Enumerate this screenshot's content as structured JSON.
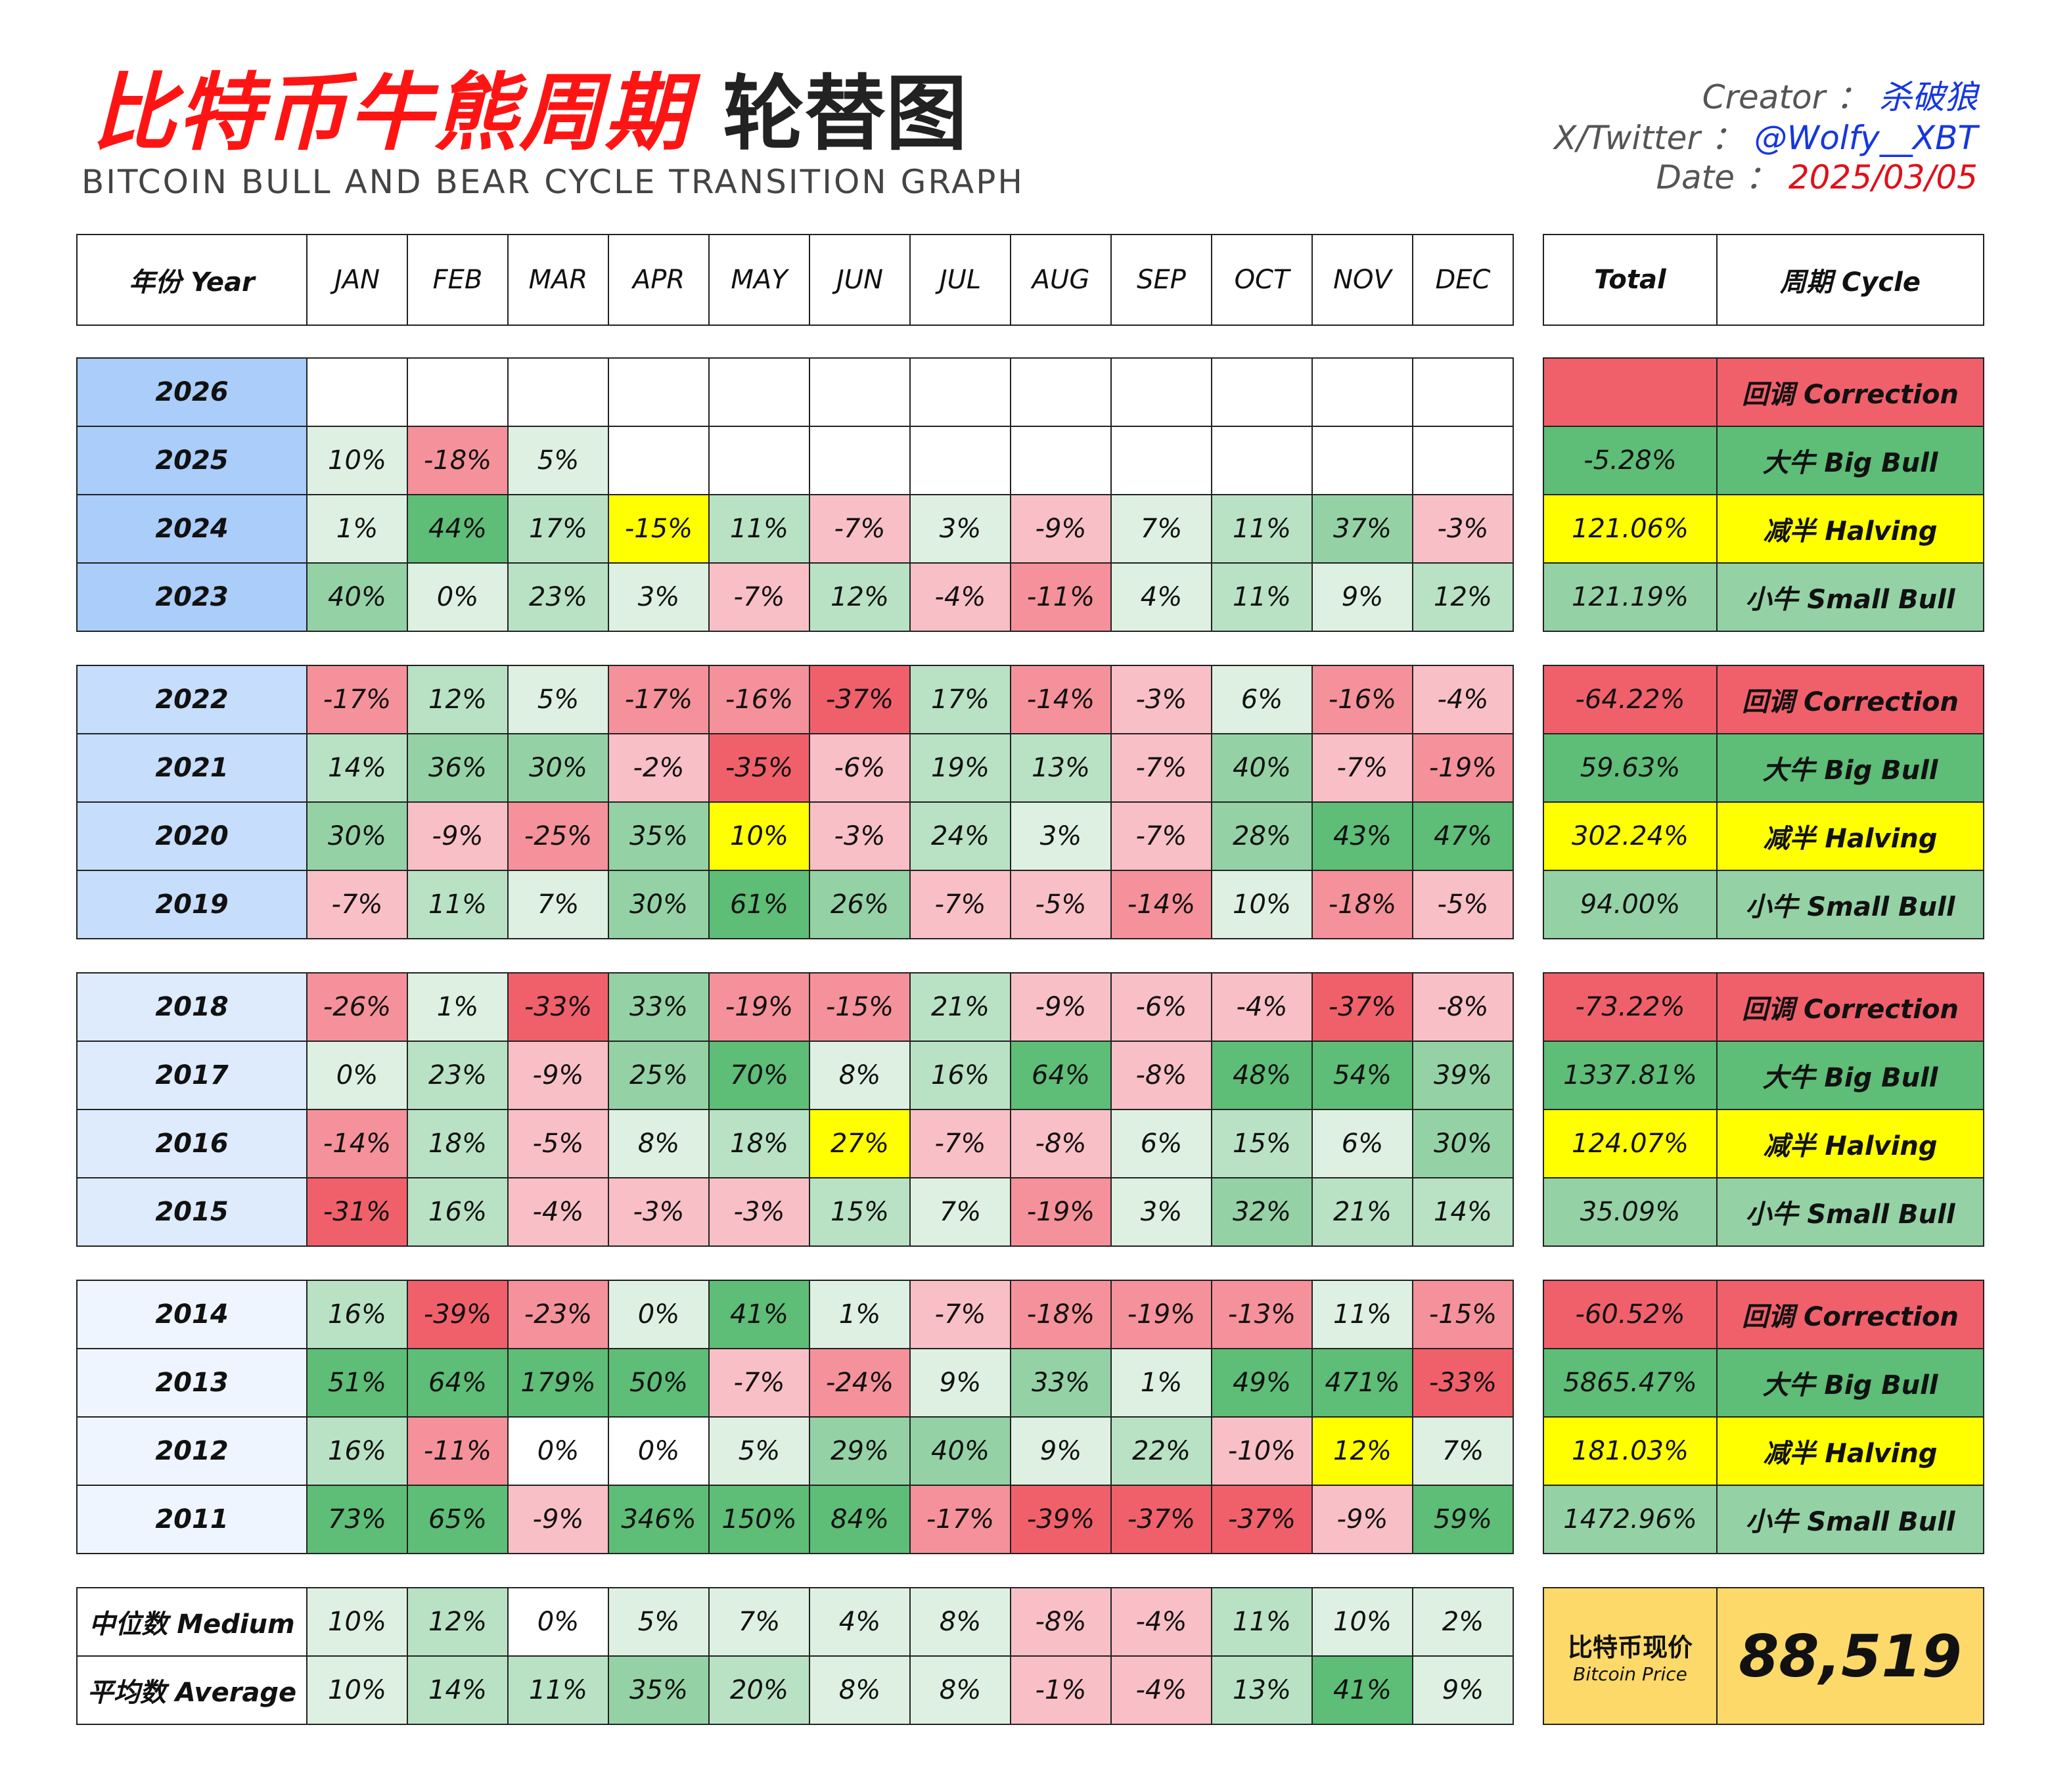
{
  "title": {
    "main": "比特币牛熊周期",
    "sub": "轮替图",
    "english": "BITCOIN BULL AND BEAR CYCLE TRANSITION GRAPH"
  },
  "meta": {
    "creator_label": "Creator ：",
    "creator": "杀破狼",
    "twitter_label": "X/Twitter ：",
    "twitter": "@Wolfy__XBT",
    "date_label": "Date ：",
    "date": "2025/03/05"
  },
  "colors": {
    "strong_red": "#f0606b",
    "red": "#f5919a",
    "light_red": "#f9bfc6",
    "pale_green": "#ddf0e2",
    "light_green": "#b9e2c5",
    "green": "#94d2a6",
    "strong_green": "#5ebd77",
    "yellow": "#ffff00",
    "year_blue": "#aacdf9",
    "price_bg": "#fdd96a"
  },
  "header": {
    "year": "年份 Year",
    "total": "Total",
    "cycle": "周期 Cycle"
  },
  "price": {
    "label_cn": "比特币现价",
    "label_en": "Bitcoin Price",
    "value": "88,519"
  },
  "chart_data": {
    "type": "table",
    "columns": [
      "JAN",
      "FEB",
      "MAR",
      "APR",
      "MAY",
      "JUN",
      "JUL",
      "AUG",
      "SEP",
      "OCT",
      "NOV",
      "DEC"
    ],
    "groups": [
      {
        "rows": [
          {
            "year": "2026",
            "values": [
              "",
              "",
              "",
              "",
              "",
              "",
              "",
              "",
              "",
              "",
              "",
              ""
            ],
            "total": "",
            "cycle": "回调 Correction"
          },
          {
            "year": "2025",
            "values": [
              "10%",
              "-18%",
              "5%",
              "",
              "",
              "",
              "",
              "",
              "",
              "",
              "",
              ""
            ],
            "total": "-5.28%",
            "cycle": "大牛 Big Bull"
          },
          {
            "year": "2024",
            "values": [
              "1%",
              "44%",
              "17%",
              "-15%",
              "11%",
              "-7%",
              "3%",
              "-9%",
              "7%",
              "11%",
              "37%",
              "-3%"
            ],
            "total": "121.06%",
            "cycle": "减半 Halving"
          },
          {
            "year": "2023",
            "values": [
              "40%",
              "0%",
              "23%",
              "3%",
              "-7%",
              "12%",
              "-4%",
              "-11%",
              "4%",
              "11%",
              "9%",
              "12%"
            ],
            "total": "121.19%",
            "cycle": "小牛 Small Bull"
          }
        ]
      },
      {
        "rows": [
          {
            "year": "2022",
            "values": [
              "-17%",
              "12%",
              "5%",
              "-17%",
              "-16%",
              "-37%",
              "17%",
              "-14%",
              "-3%",
              "6%",
              "-16%",
              "-4%"
            ],
            "total": "-64.22%",
            "cycle": "回调 Correction"
          },
          {
            "year": "2021",
            "values": [
              "14%",
              "36%",
              "30%",
              "-2%",
              "-35%",
              "-6%",
              "19%",
              "13%",
              "-7%",
              "40%",
              "-7%",
              "-19%"
            ],
            "total": "59.63%",
            "cycle": "大牛 Big Bull"
          },
          {
            "year": "2020",
            "values": [
              "30%",
              "-9%",
              "-25%",
              "35%",
              "10%",
              "-3%",
              "24%",
              "3%",
              "-7%",
              "28%",
              "43%",
              "47%"
            ],
            "total": "302.24%",
            "cycle": "减半 Halving"
          },
          {
            "year": "2019",
            "values": [
              "-7%",
              "11%",
              "7%",
              "30%",
              "61%",
              "26%",
              "-7%",
              "-5%",
              "-14%",
              "10%",
              "-18%",
              "-5%"
            ],
            "total": "94.00%",
            "cycle": "小牛 Small Bull"
          }
        ]
      },
      {
        "rows": [
          {
            "year": "2018",
            "values": [
              "-26%",
              "1%",
              "-33%",
              "33%",
              "-19%",
              "-15%",
              "21%",
              "-9%",
              "-6%",
              "-4%",
              "-37%",
              "-8%"
            ],
            "total": "-73.22%",
            "cycle": "回调 Correction"
          },
          {
            "year": "2017",
            "values": [
              "0%",
              "23%",
              "-9%",
              "25%",
              "70%",
              "8%",
              "16%",
              "64%",
              "-8%",
              "48%",
              "54%",
              "39%"
            ],
            "total": "1337.81%",
            "cycle": "大牛 Big Bull"
          },
          {
            "year": "2016",
            "values": [
              "-14%",
              "18%",
              "-5%",
              "8%",
              "18%",
              "27%",
              "-7%",
              "-8%",
              "6%",
              "15%",
              "6%",
              "30%"
            ],
            "total": "124.07%",
            "cycle": "减半 Halving"
          },
          {
            "year": "2015",
            "values": [
              "-31%",
              "16%",
              "-4%",
              "-3%",
              "-3%",
              "15%",
              "7%",
              "-19%",
              "3%",
              "32%",
              "21%",
              "14%"
            ],
            "total": "35.09%",
            "cycle": "小牛 Small Bull"
          }
        ]
      },
      {
        "rows": [
          {
            "year": "2014",
            "values": [
              "16%",
              "-39%",
              "-23%",
              "0%",
              "41%",
              "1%",
              "-7%",
              "-18%",
              "-19%",
              "-13%",
              "11%",
              "-15%"
            ],
            "total": "-60.52%",
            "cycle": "回调 Correction"
          },
          {
            "year": "2013",
            "values": [
              "51%",
              "64%",
              "179%",
              "50%",
              "-7%",
              "-24%",
              "9%",
              "33%",
              "1%",
              "49%",
              "471%",
              "-33%"
            ],
            "total": "5865.47%",
            "cycle": "大牛 Big Bull"
          },
          {
            "year": "2012",
            "values": [
              "16%",
              "-11%",
              "0%",
              "0%",
              "5%",
              "29%",
              "40%",
              "9%",
              "22%",
              "-10%",
              "12%",
              "7%"
            ],
            "total": "181.03%",
            "cycle": "减半 Halving"
          },
          {
            "year": "2011",
            "values": [
              "73%",
              "65%",
              "-9%",
              "346%",
              "150%",
              "84%",
              "-17%",
              "-39%",
              "-37%",
              "-37%",
              "-9%",
              "59%"
            ],
            "total": "1472.96%",
            "cycle": "小牛 Small Bull"
          }
        ]
      }
    ],
    "stats": [
      {
        "label": "中位数 Medium",
        "values": [
          "10%",
          "12%",
          "0%",
          "5%",
          "7%",
          "4%",
          "8%",
          "-8%",
          "-4%",
          "11%",
          "10%",
          "2%"
        ]
      },
      {
        "label": "平均数 Average",
        "values": [
          "10%",
          "14%",
          "11%",
          "35%",
          "20%",
          "8%",
          "8%",
          "-1%",
          "-4%",
          "13%",
          "41%",
          "9%"
        ]
      }
    ],
    "cell_colors": {
      "2026": [
        "w",
        "w",
        "w",
        "w",
        "w",
        "w",
        "w",
        "w",
        "w",
        "w",
        "w",
        "w"
      ],
      "2025": [
        "pg",
        "r",
        "pg",
        "w",
        "w",
        "w",
        "w",
        "w",
        "w",
        "w",
        "w",
        "w"
      ],
      "2024": [
        "pg",
        "sg",
        "lg",
        "y",
        "lg",
        "lr",
        "pg",
        "lr",
        "pg",
        "lg",
        "g",
        "lr"
      ],
      "2023": [
        "g",
        "pg",
        "lg",
        "pg",
        "lr",
        "lg",
        "lr",
        "r",
        "pg",
        "lg",
        "pg",
        "lg"
      ],
      "2022": [
        "r",
        "lg",
        "pg",
        "r",
        "r",
        "sr",
        "lg",
        "r",
        "lr",
        "pg",
        "r",
        "lr"
      ],
      "2021": [
        "lg",
        "g",
        "g",
        "lr",
        "sr",
        "lr",
        "lg",
        "lg",
        "lr",
        "g",
        "lr",
        "r"
      ],
      "2020": [
        "g",
        "lr",
        "r",
        "g",
        "y",
        "lr",
        "lg",
        "pg",
        "lr",
        "g",
        "sg",
        "sg"
      ],
      "2019": [
        "lr",
        "lg",
        "pg",
        "g",
        "sg",
        "g",
        "lr",
        "lr",
        "r",
        "pg",
        "r",
        "lr"
      ],
      "2018": [
        "r",
        "pg",
        "sr",
        "g",
        "r",
        "r",
        "lg",
        "lr",
        "lr",
        "lr",
        "sr",
        "lr"
      ],
      "2017": [
        "pg",
        "lg",
        "lr",
        "g",
        "sg",
        "pg",
        "lg",
        "sg",
        "lr",
        "sg",
        "sg",
        "g"
      ],
      "2016": [
        "r",
        "lg",
        "lr",
        "pg",
        "lg",
        "y",
        "lr",
        "lr",
        "pg",
        "lg",
        "pg",
        "g"
      ],
      "2015": [
        "sr",
        "lg",
        "lr",
        "lr",
        "lr",
        "lg",
        "pg",
        "r",
        "pg",
        "g",
        "lg",
        "lg"
      ],
      "2014": [
        "lg",
        "sr",
        "r",
        "pg",
        "sg",
        "pg",
        "lr",
        "r",
        "r",
        "r",
        "pg",
        "r"
      ],
      "2013": [
        "sg",
        "sg",
        "sg",
        "sg",
        "lr",
        "r",
        "pg",
        "g",
        "pg",
        "sg",
        "sg",
        "sr"
      ],
      "2012": [
        "lg",
        "r",
        "w",
        "w",
        "pg",
        "g",
        "g",
        "pg",
        "lg",
        "lr",
        "y",
        "pg"
      ],
      "2011": [
        "sg",
        "sg",
        "lr",
        "sg",
        "sg",
        "sg",
        "r",
        "sr",
        "sr",
        "sr",
        "lr",
        "sg"
      ],
      "medium": [
        "pg",
        "lg",
        "w",
        "pg",
        "pg",
        "pg",
        "pg",
        "lr",
        "lr",
        "lg",
        "pg",
        "pg"
      ],
      "average": [
        "pg",
        "lg",
        "lg",
        "g",
        "lg",
        "pg",
        "pg",
        "lr",
        "lr",
        "lg",
        "sg",
        "pg"
      ]
    },
    "total_colors": {
      "回调 Correction": "sr",
      "大牛 Big Bull": "sg",
      "减半 Halving": "y",
      "小牛 Small Bull": "g"
    },
    "year_colors": [
      "#aacdf9",
      "#c6ddfb",
      "#ddebfd",
      "#eef5fe"
    ]
  }
}
